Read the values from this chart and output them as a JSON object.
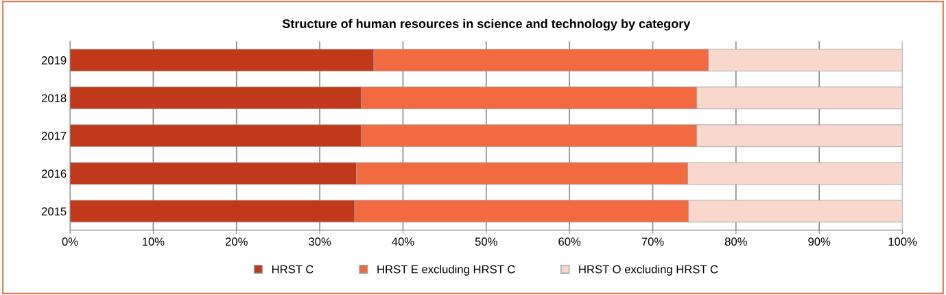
{
  "chart_data": {
    "type": "bar",
    "orientation": "horizontal",
    "stacked": true,
    "title": "Structure of human resources in science and technology by category",
    "categories": [
      "2019",
      "2018",
      "2017",
      "2016",
      "2015"
    ],
    "series": [
      {
        "name": "HRST C",
        "color": "#c0391b",
        "values": [
          36.5,
          35.0,
          35.0,
          34.4,
          34.2
        ]
      },
      {
        "name": "HRST E excluding HRST C",
        "color": "#f26a3f",
        "values": [
          40.2,
          40.3,
          40.3,
          39.8,
          40.1
        ]
      },
      {
        "name": "HRST O excluding HRST C",
        "color": "#f8d8cc",
        "values": [
          23.3,
          24.7,
          24.7,
          25.8,
          25.7
        ]
      }
    ],
    "xlim": [
      0,
      100
    ],
    "xticks": [
      {
        "value": 0,
        "label": "0%"
      },
      {
        "value": 10,
        "label": "10%"
      },
      {
        "value": 20,
        "label": "20%"
      },
      {
        "value": 30,
        "label": "30%"
      },
      {
        "value": 40,
        "label": "40%"
      },
      {
        "value": 50,
        "label": "50%"
      },
      {
        "value": 60,
        "label": "60%"
      },
      {
        "value": 70,
        "label": "70%"
      },
      {
        "value": 80,
        "label": "80%"
      },
      {
        "value": 90,
        "label": "90%"
      },
      {
        "value": 100,
        "label": "100%"
      }
    ],
    "grid": "x",
    "legend": "bottom"
  }
}
